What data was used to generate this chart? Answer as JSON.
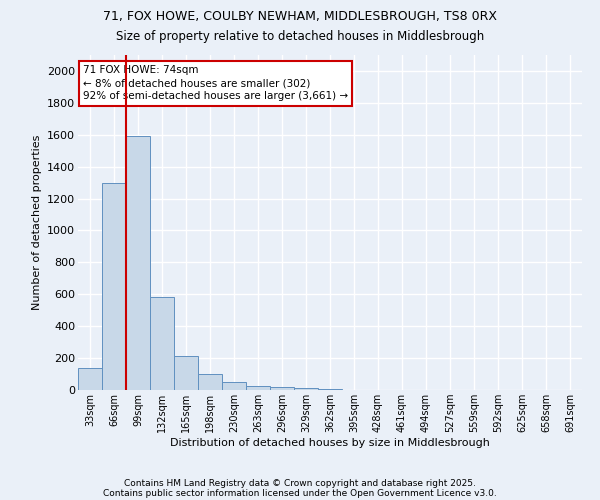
{
  "title_line1": "71, FOX HOWE, COULBY NEWHAM, MIDDLESBROUGH, TS8 0RX",
  "title_line2": "Size of property relative to detached houses in Middlesbrough",
  "xlabel": "Distribution of detached houses by size in Middlesbrough",
  "ylabel": "Number of detached properties",
  "categories": [
    "33sqm",
    "66sqm",
    "99sqm",
    "132sqm",
    "165sqm",
    "198sqm",
    "230sqm",
    "263sqm",
    "296sqm",
    "329sqm",
    "362sqm",
    "395sqm",
    "428sqm",
    "461sqm",
    "494sqm",
    "527sqm",
    "559sqm",
    "592sqm",
    "625sqm",
    "658sqm",
    "691sqm"
  ],
  "values": [
    140,
    1300,
    1590,
    580,
    215,
    100,
    50,
    25,
    20,
    12,
    8,
    0,
    0,
    0,
    0,
    0,
    0,
    0,
    0,
    0,
    0
  ],
  "bar_color": "#c8d8e8",
  "bar_edge_color": "#6090c0",
  "vline_color": "#cc0000",
  "vline_x": 1.5,
  "annotation_text_line1": "71 FOX HOWE: 74sqm",
  "annotation_text_line2": "← 8% of detached houses are smaller (302)",
  "annotation_text_line3": "92% of semi-detached houses are larger (3,661) →",
  "annotation_box_color": "#ffffff",
  "annotation_box_edge_color": "#cc0000",
  "ylim": [
    0,
    2100
  ],
  "yticks": [
    0,
    200,
    400,
    600,
    800,
    1000,
    1200,
    1400,
    1600,
    1800,
    2000
  ],
  "background_color": "#eaf0f8",
  "grid_color": "#ffffff",
  "footnote_line1": "Contains HM Land Registry data © Crown copyright and database right 2025.",
  "footnote_line2": "Contains public sector information licensed under the Open Government Licence v3.0."
}
